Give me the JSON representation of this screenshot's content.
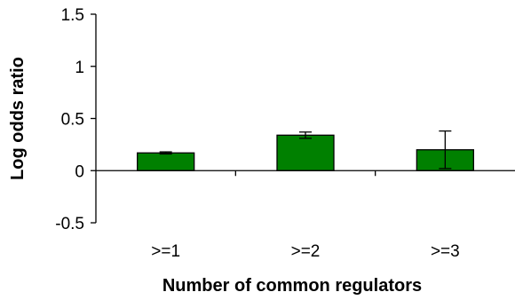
{
  "chart_data": {
    "type": "bar",
    "title": "",
    "xlabel": "Number of common regulators",
    "ylabel": "Log odds ratio",
    "categories": [
      ">=1",
      ">=2",
      ">=3"
    ],
    "values": [
      0.17,
      0.34,
      0.2
    ],
    "error_low": [
      0.16,
      0.31,
      0.02
    ],
    "error_high": [
      0.18,
      0.37,
      0.38
    ],
    "ylim": [
      -0.5,
      1.5
    ],
    "yticks": [
      -0.5,
      0,
      0.5,
      1,
      1.5
    ],
    "ytick_labels": [
      "-0.5",
      "0",
      "0.5",
      "1",
      "1.5"
    ],
    "bar_color": "#008000",
    "bar_outline": "#000000",
    "grid": false,
    "legend": "none"
  }
}
